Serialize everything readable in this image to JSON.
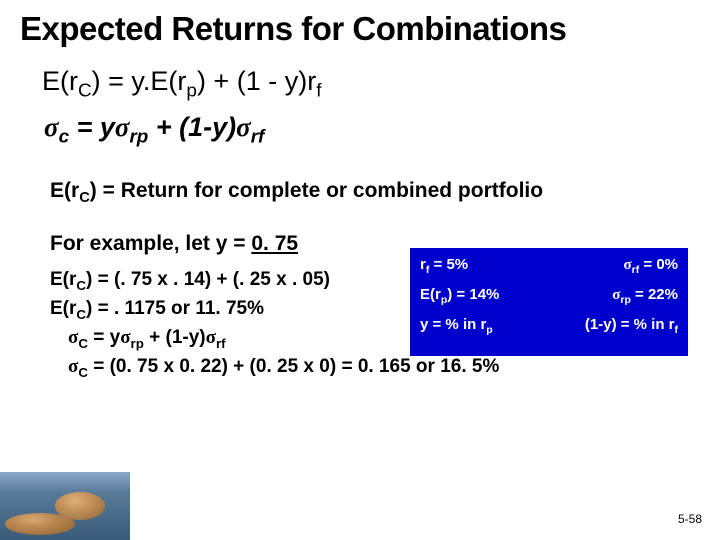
{
  "title": "Expected Returns for Combinations",
  "eq1_html": "E(r<sub>C</sub>) =  y.E(r<sub>p</sub>) + (1 - y)r<sub>f</sub>",
  "eq2_html": "<span class='sigma'>σ</span><sub>c</sub> = y<span class='sigma'>σ</span><sub>rp</sub> + (1-y)<span class='sigma'>σ</span><sub>rf</sub>",
  "rc_line_html": "E(r<sub>C</sub>) = Return for complete or combined portfolio",
  "example_prefix": "For example, let y = ",
  "example_y": "0. 75",
  "calc1_html": "E(r<sub>C</sub>) = (. 75 x . 14) + (. 25 x . 05)",
  "calc2_html": "E(r<sub>C</sub>) = . 1175 or 11. 75%",
  "calc3_html": "<span class='sigma'>σ</span><sub>C</sub> = y<span class='sigma'>σ</span><sub>rp</sub> + (1-y)<span class='sigma'>σ</span><sub>rf</sub>",
  "calc4_html": "<span class='sigma'>σ</span><sub>C</sub> = (0. 75 x 0. 22) + (0. 25 x 0) = 0. 165 or 16. 5%",
  "bluebox": {
    "background_color": "#0000cc",
    "text_color": "#ffffff",
    "rows": [
      {
        "left_html": "r<sub>f</sub> = 5%",
        "right_html": "<span class='sigma'>σ</span><sub>rf</sub> = 0%"
      },
      {
        "left_html": "E(r<sub>p</sub>) = 14%",
        "right_html": "<span class='sigma'>σ</span><sub>rp</sub> = 22%"
      },
      {
        "left_html": "y = % in r<sub>p</sub>",
        "right_html": "(1-y) = % in r<sub>f</sub>"
      }
    ]
  },
  "page_number": "5-58",
  "colors": {
    "slide_bg": "#ffffff",
    "text": "#000000"
  }
}
